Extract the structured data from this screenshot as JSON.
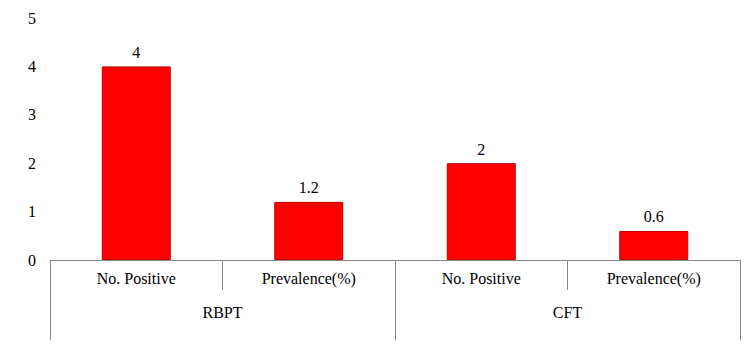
{
  "chart_data": {
    "type": "bar",
    "groups": [
      "RBPT",
      "CFT"
    ],
    "categories": [
      "No. Positive",
      "Prevalence(%)",
      "No. Positive",
      "Prevalence(%)"
    ],
    "values": [
      4,
      1.2,
      2,
      0.6
    ],
    "color": "#ff0000",
    "ylim": [
      0,
      5
    ],
    "yticks": [
      0,
      1,
      2,
      3,
      4,
      5
    ],
    "grid": false,
    "data_labels": true
  }
}
